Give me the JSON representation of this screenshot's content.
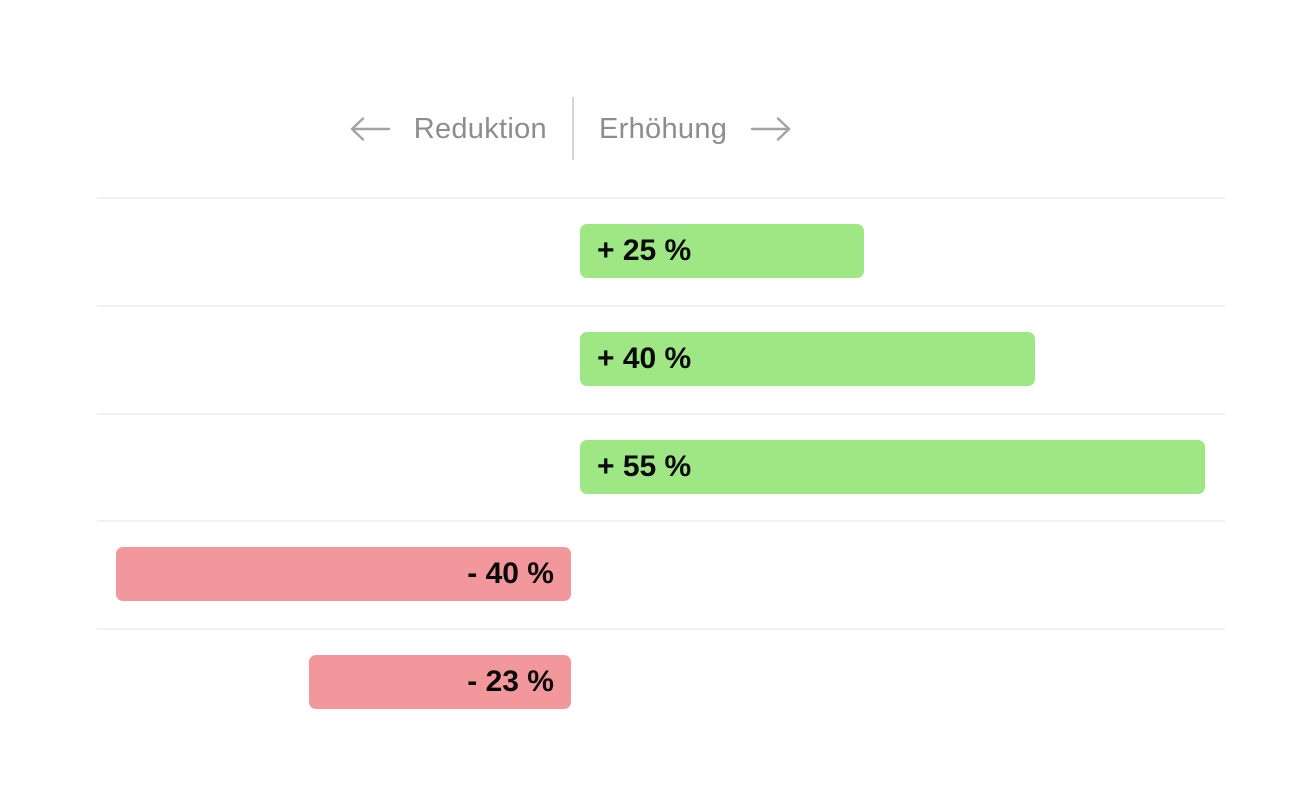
{
  "header": {
    "left_label": "Reduktion",
    "right_label": "Erhöhung"
  },
  "colors": {
    "background": "#ffffff",
    "positive": "#9fe684",
    "negative": "#f2979b",
    "grid_line": "#f1f1f1",
    "divider": "#d5d5d5",
    "header_text": "#8d8d8d",
    "arrow": "#a3a3a3",
    "bar_text": "#0a0a0a"
  },
  "chart_data": {
    "type": "bar",
    "orientation": "horizontal",
    "title": "",
    "xlabel": "",
    "ylabel": "",
    "value_unit": "%",
    "xlim": [
      -42,
      57
    ],
    "grid": true,
    "axis_direction_labels": {
      "negative": "Reduktion",
      "positive": "Erhöhung"
    },
    "bars": [
      {
        "label": "+ 25 %",
        "value": 25
      },
      {
        "label": "+ 40 %",
        "value": 40
      },
      {
        "label": "+ 55 %",
        "value": 55
      },
      {
        "label": "- 40 %",
        "value": -40
      },
      {
        "label": "- 23 %",
        "value": -23
      }
    ]
  }
}
